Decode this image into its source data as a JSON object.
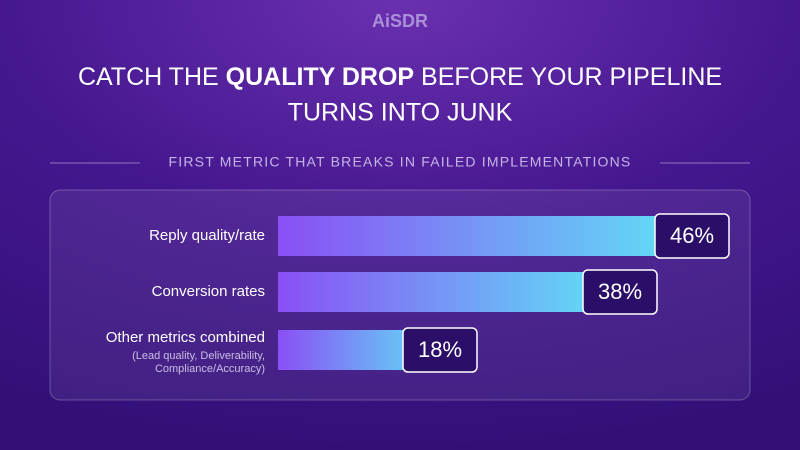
{
  "brand": "AiSDR",
  "chart_data": {
    "type": "bar",
    "orientation": "horizontal",
    "title": [
      "CATCH THE ",
      "QUALITY DROP",
      " BEFORE YOUR PIPELINE",
      "TURNS INTO JUNK"
    ],
    "subtitle": "FIRST METRIC THAT BREAKS IN FAILED IMPLEMENTATIONS",
    "categories": [
      "Reply quality/rate",
      "Conversion rates",
      "Other metrics combined"
    ],
    "category_note": [
      "(Lead quality, Deliverability,",
      "Compliance/Accuracy)"
    ],
    "values": [
      46,
      38,
      18
    ],
    "value_labels": [
      "46%",
      "38%",
      "18%"
    ],
    "colors": [
      "#8a4ff5",
      "#5fe3f6"
    ]
  }
}
